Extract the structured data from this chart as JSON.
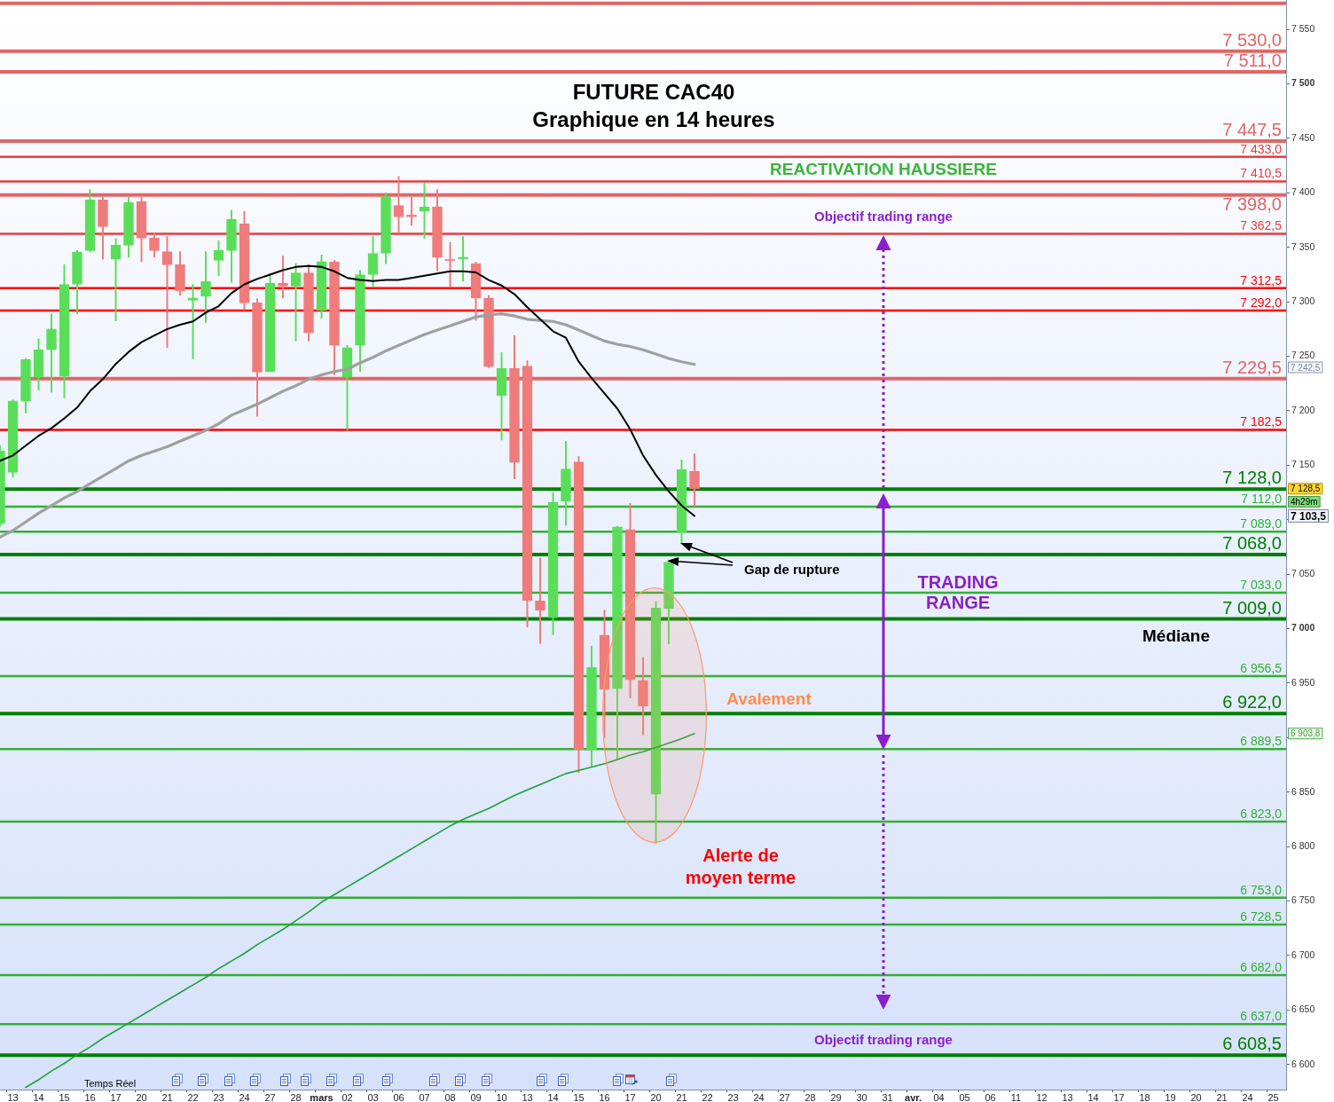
{
  "chart_data": {
    "type": "candlestick",
    "title": "FUTURE CAC40",
    "subtitle": "Graphique en 14 heures",
    "categories": [
      null,
      "13",
      null,
      "14",
      null,
      "15",
      null,
      "16",
      null,
      "17",
      null,
      "20",
      null,
      "21",
      null,
      "22",
      null,
      "23",
      null,
      "24",
      null,
      "27",
      null,
      "28",
      null,
      "mars",
      null,
      "02",
      null,
      "03",
      null,
      "06",
      null,
      "07",
      null,
      "08",
      null,
      "09",
      null,
      "10",
      null,
      "13",
      null,
      "14",
      null,
      "15",
      null,
      "16",
      null,
      "17",
      null,
      "20",
      null,
      "21",
      null,
      "22",
      null,
      "23",
      null,
      "24",
      null,
      "27",
      null,
      "28",
      null,
      "29",
      null,
      "30",
      null,
      "31",
      null,
      "avr.",
      null,
      "04",
      null,
      "05",
      null,
      "06",
      null,
      "11",
      null,
      "12",
      null,
      "13",
      null,
      "14",
      null,
      "17",
      null,
      "18",
      null,
      "19",
      null,
      "20",
      null,
      "21",
      null,
      "24",
      null,
      "25",
      null
    ],
    "ohlc": [
      [
        7096.5,
        7168,
        7094,
        7163
      ],
      [
        7143.5,
        7210,
        7139,
        7209
      ],
      [
        7209,
        7248,
        7198,
        7247
      ],
      [
        7231,
        7266,
        7219,
        7256
      ],
      [
        7256,
        7289,
        7217,
        7275
      ],
      [
        7231.5,
        7334,
        7212,
        7316
      ],
      [
        7316,
        7347,
        7289,
        7345.5
      ],
      [
        7347,
        7403,
        7346,
        7393.5
      ],
      [
        7393.5,
        7396,
        7339,
        7369
      ],
      [
        7339,
        7358,
        7282.5,
        7352
      ],
      [
        7352,
        7396,
        7341,
        7391
      ],
      [
        7392,
        7396,
        7337,
        7358.5
      ],
      [
        7358.5,
        7363,
        7341,
        7347
      ],
      [
        7346,
        7360,
        7258,
        7334
      ],
      [
        7334,
        7346,
        7306,
        7310
      ],
      [
        7301.5,
        7316,
        7247.5,
        7303.5
      ],
      [
        7305,
        7346,
        7281,
        7318.5
      ],
      [
        7338,
        7356,
        7324,
        7347
      ],
      [
        7347,
        7384,
        7318,
        7375.5
      ],
      [
        7371.5,
        7383,
        7292.5,
        7299
      ],
      [
        7299,
        7303,
        7195,
        7235.5
      ],
      [
        7236,
        7326,
        7236,
        7317
      ],
      [
        7317,
        7342,
        7303.5,
        7314.5
      ],
      [
        7314.5,
        7335,
        7264,
        7326.5
      ],
      [
        7326.5,
        7334,
        7264,
        7271.5
      ],
      [
        7292,
        7343,
        7285,
        7337
      ],
      [
        7336.5,
        7338,
        7233,
        7260
      ],
      [
        7231,
        7260,
        7182.5,
        7258
      ],
      [
        7260,
        7329,
        7236,
        7325
      ],
      [
        7325,
        7360,
        7314,
        7344.5
      ],
      [
        7344.5,
        7400,
        7335,
        7396.5
      ],
      [
        7388.5,
        7415,
        7363,
        7378
      ],
      [
        7378.5,
        7396,
        7370,
        7378
      ],
      [
        7383,
        7409,
        7358,
        7387
      ],
      [
        7387,
        7403,
        7328.5,
        7341
      ],
      [
        7338,
        7354.5,
        7313.5,
        7337.5
      ],
      [
        7339,
        7360,
        7319,
        7341
      ],
      [
        7335,
        7336.5,
        7283,
        7303.5
      ],
      [
        7303.5,
        7306,
        7239.5,
        7240.5
      ],
      [
        7214,
        7253.5,
        7173,
        7239
      ],
      [
        7239,
        7269,
        7137.5,
        7152.5
      ],
      [
        7241,
        7246,
        7001.5,
        7026
      ],
      [
        7025.5,
        7065,
        6986.5,
        7017
      ],
      [
        7010,
        7125,
        6994.5,
        7116
      ],
      [
        7117,
        7172,
        7095,
        7146.5
      ],
      [
        7153,
        7158,
        6868,
        6889
      ],
      [
        6889,
        6984,
        6874,
        6964.5
      ],
      [
        6994,
        7017,
        6900,
        6944.5
      ],
      [
        6945,
        7094,
        6881,
        7093.5
      ],
      [
        7091,
        7115,
        6936.5,
        6953
      ],
      [
        6952.5,
        6973.5,
        6902.5,
        6929
      ],
      [
        6848,
        7025,
        6803,
        7019
      ],
      [
        7018.5,
        7061,
        6986,
        7061
      ],
      [
        7088.5,
        7155,
        7078,
        7146
      ],
      [
        7144.5,
        7160.5,
        7112,
        7128.5
      ],
      null,
      null,
      null,
      null,
      null,
      null,
      null,
      null,
      null,
      null,
      null,
      null,
      null,
      null,
      null,
      null,
      null,
      null,
      null,
      null,
      null,
      null,
      null,
      null,
      null,
      null,
      null,
      null,
      null,
      null,
      null,
      null,
      null,
      null,
      null,
      null,
      null,
      null,
      null,
      null,
      null,
      null,
      null,
      null,
      null,
      null
    ],
    "colors": [
      "#5ade5a",
      "#5ade5a",
      "#5ade5a",
      "#5ade5a",
      "#5ade5a",
      "#5ade5a",
      "#5ade5a",
      "#5ade5a",
      "#ef7b7b",
      "#5ade5a",
      "#5ade5a",
      "#ef7b7b",
      "#ef7b7b",
      "#ef7b7b",
      "#ef7b7b",
      "#5ade5a",
      "#5ade5a",
      "#5ade5a",
      "#5ade5a",
      "#ef7b7b",
      "#ef7b7b",
      "#5ade5a",
      "#ef7b7b",
      "#5ade5a",
      "#ef7b7b",
      "#5ade5a",
      "#ef7b7b",
      "#5ade5a",
      "#5ade5a",
      "#5ade5a",
      "#5ade5a",
      "#ef7b7b",
      "#ef7b7b",
      "#5ade5a",
      "#ef7b7b",
      "#ef7b7b",
      "#5ade5a",
      "#ef7b7b",
      "#ef7b7b",
      "#5ade5a",
      "#ef7b7b",
      "#ef7b7b",
      "#ef7b7b",
      "#5ade5a",
      "#5ade5a",
      "#ef7b7b",
      "#5ade5a",
      "#ef7b7b",
      "#5ade5a",
      "#ef7b7b",
      "#ef7b7b",
      "#5ade5a",
      "#5ade5a",
      "#5ade5a",
      "#ef7b7b",
      null,
      null,
      null,
      null,
      null,
      null,
      null,
      null,
      null,
      null,
      null,
      null,
      null,
      null,
      null,
      null,
      null,
      null,
      null,
      null,
      null,
      null,
      null,
      null,
      null,
      null,
      null,
      null,
      null,
      null,
      null,
      null,
      null,
      null,
      null,
      null,
      null,
      null,
      null,
      null,
      null,
      null,
      null,
      null,
      null,
      null
    ],
    "series": [
      {
        "type": "line",
        "color": "#000000",
        "values": [
          7154,
          7159,
          7168,
          7177,
          7184,
          7193,
          7203,
          7218,
          7229,
          7243,
          7254,
          7263,
          7269,
          7275,
          7279,
          7282,
          7290,
          7296,
          7308,
          7316,
          7321,
          7325,
          7329,
          7332,
          7333,
          7332,
          7328,
          7322,
          7320,
          7319,
          7320,
          7320,
          7322,
          7324,
          7326,
          7328,
          7328,
          7327,
          7320,
          7315,
          7307,
          7295,
          7284,
          7273,
          7267,
          7245,
          7230,
          7216,
          7202,
          7183,
          7159,
          7141,
          7126,
          7113,
          7103.5,
          null,
          null,
          null,
          null,
          null,
          null,
          null,
          null,
          null,
          null,
          null,
          null,
          null,
          null,
          null,
          null,
          null,
          null,
          null,
          null,
          null,
          null,
          null,
          null,
          null,
          null,
          null,
          null,
          null,
          null,
          null,
          null,
          null,
          null,
          null,
          null,
          null,
          null,
          null,
          null,
          null,
          null,
          null,
          null,
          null,
          null
        ]
      },
      {
        "type": "line",
        "color": "#a0a0a0",
        "values": [
          7084,
          7090,
          7098,
          7106,
          7113,
          7120,
          7126,
          7133,
          7140,
          7147,
          7154,
          7159,
          7163,
          7167,
          7172,
          7177,
          7182,
          7188,
          7196,
          7201,
          7206,
          7212,
          7218,
          7223,
          7229,
          7233,
          7236,
          7238,
          7244,
          7249,
          7255,
          7260,
          7265,
          7270,
          7274,
          7278,
          7282,
          7286,
          7288,
          7289,
          7287,
          7284,
          7283,
          7282,
          7279,
          7274,
          7269,
          7264,
          7261,
          7259,
          7256,
          7252,
          7248,
          7245,
          7242.5,
          null,
          null,
          null,
          null,
          null,
          null,
          null,
          null,
          null,
          null,
          null,
          null,
          null,
          null,
          null,
          null,
          null,
          null,
          null,
          null,
          null,
          null,
          null,
          null,
          null,
          null,
          null,
          null,
          null,
          null,
          null,
          null,
          null,
          null,
          null,
          null,
          null,
          null,
          null,
          null,
          null,
          null,
          null,
          null,
          null,
          null
        ]
      },
      {
        "type": "line",
        "color": "#1ea03c",
        "values": [
          null,
          null,
          6579,
          6586,
          6594,
          6601,
          6609,
          6616,
          6624,
          6631,
          6638,
          6645,
          6652,
          6659,
          6666,
          6673,
          6680,
          6688,
          6695,
          6702,
          6710,
          6717,
          6724,
          6732,
          6740,
          6749,
          6756,
          6763,
          6770,
          6777,
          6784,
          6791,
          6798,
          6805,
          6812,
          6819,
          6825,
          6830,
          6835,
          6841,
          6847,
          6852,
          6857,
          6862,
          6867,
          6870,
          6873,
          6876,
          6880,
          6884,
          6887,
          6891,
          6895,
          6899,
          6903.8,
          null,
          null,
          null,
          null,
          null,
          null,
          null,
          null,
          null,
          null,
          null,
          null,
          null,
          null,
          null,
          null,
          null,
          null,
          null,
          null,
          null,
          null,
          null,
          null,
          null,
          null,
          null,
          null,
          null,
          null,
          null,
          null,
          null,
          null,
          null,
          null,
          null,
          null,
          null,
          null,
          null,
          null,
          null,
          null,
          null,
          null
        ]
      }
    ],
    "ylim": [
      6577,
      7577
    ],
    "yticks": [
      {
        "value": 6600,
        "label": "6 600"
      },
      {
        "value": 6650,
        "label": "6 650"
      },
      {
        "value": 6700,
        "label": "6 700"
      },
      {
        "value": 6750,
        "label": "6 750"
      },
      {
        "value": 6800,
        "label": "6 800"
      },
      {
        "value": 6850,
        "label": "6 850"
      },
      {
        "value": 6900,
        "label": null
      },
      {
        "value": 6950,
        "label": "6 950"
      },
      {
        "value": 7000,
        "label": "7 000"
      },
      {
        "value": 7050,
        "label": "7 050"
      },
      {
        "value": 7100,
        "label": null
      },
      {
        "value": 7150,
        "label": "7 150"
      },
      {
        "value": 7200,
        "label": "7 200"
      },
      {
        "value": 7250,
        "label": "7 250"
      },
      {
        "value": 7300,
        "label": "7 300"
      },
      {
        "value": 7350,
        "label": "7 350"
      },
      {
        "value": 7400,
        "label": "7 400"
      },
      {
        "value": 7450,
        "label": "7 450"
      },
      {
        "value": 7500,
        "label": "7 500"
      },
      {
        "value": 7550,
        "label": "7 550"
      }
    ],
    "ref_lines": [
      {
        "axis": "y",
        "value": 7574,
        "color": "#e06666"
      },
      {
        "axis": "y",
        "value": 7530,
        "label": "7 530,0",
        "color": "#e06666"
      },
      {
        "axis": "y",
        "value": 7511,
        "label": "7 511,0",
        "color": "#e06666"
      },
      {
        "axis": "y",
        "value": 7447.5,
        "label": "7 447,5",
        "color": "#e06666"
      },
      {
        "axis": "y",
        "value": 7433,
        "label": "7 433,0",
        "color": "#e83c3c"
      },
      {
        "axis": "y",
        "value": 7410.5,
        "label": "7 410,5",
        "color": "#e83c3c"
      },
      {
        "axis": "y",
        "value": 7398,
        "label": "7 398,0",
        "color": "#e06666"
      },
      {
        "axis": "y",
        "value": 7362.5,
        "label": "7 362,5",
        "color": "#e83c3c"
      },
      {
        "axis": "y",
        "value": 7312.5,
        "label": "7 312,5",
        "color": "#ff0000"
      },
      {
        "axis": "y",
        "value": 7292,
        "label": "7 292,0",
        "color": "#ff0000"
      },
      {
        "axis": "y",
        "value": 7229.5,
        "label": "7 229,5",
        "color": "#e06666"
      },
      {
        "axis": "y",
        "value": 7182.5,
        "label": "7 182,5",
        "color": "#ff0000"
      },
      {
        "axis": "y",
        "value": 7128,
        "label": "7 128,0",
        "color": "#007f00"
      },
      {
        "axis": "y",
        "value": 7112,
        "label": "7 112,0",
        "color": "#33b033"
      },
      {
        "axis": "y",
        "value": 7089,
        "label": "7 089,0",
        "color": "#33b033"
      },
      {
        "axis": "y",
        "value": 7068,
        "label": "7 068,0",
        "color": "#007f00"
      },
      {
        "axis": "y",
        "value": 7033,
        "label": "7 033,0",
        "color": "#33b033"
      },
      {
        "axis": "y",
        "value": 7009,
        "label": "7 009,0",
        "color": "#007f00"
      },
      {
        "axis": "y",
        "value": 6956.5,
        "label": "6 956,5",
        "color": "#33b033"
      },
      {
        "axis": "y",
        "value": 6922,
        "label": "6 922,0",
        "color": "#007f00"
      },
      {
        "axis": "y",
        "value": 6889.5,
        "label": "6 889,5",
        "color": "#33b033"
      },
      {
        "axis": "y",
        "value": 6823,
        "label": "6 823,0",
        "color": "#33b033"
      },
      {
        "axis": "y",
        "value": 6753,
        "label": "6 753,0",
        "color": "#33b033"
      },
      {
        "axis": "y",
        "value": 6728.5,
        "label": "6 728,5",
        "color": "#33b033"
      },
      {
        "axis": "y",
        "value": 6682,
        "label": "6 682,0",
        "color": "#33b033"
      },
      {
        "axis": "y",
        "value": 6637,
        "label": "6 637,0",
        "color": "#33b033"
      },
      {
        "axis": "y",
        "value": 6608.5,
        "label": "6 608,5",
        "color": "#007f00"
      }
    ],
    "annotations": [
      "REACTIVATION HAUSSIERE",
      "Objectif trading range",
      "Gap de rupture",
      "TRADING RANGE",
      "Médiane",
      "Avalement",
      "Alerte de moyen terme",
      "Objectif trading range",
      "4h29m",
      "Temps Réel",
      "7 242,5",
      {
        "text": "7 128,5",
        "y": 7128.5
      },
      "7 103,5",
      {
        "text": "6 903,8",
        "y": 6903.8
      }
    ]
  }
}
